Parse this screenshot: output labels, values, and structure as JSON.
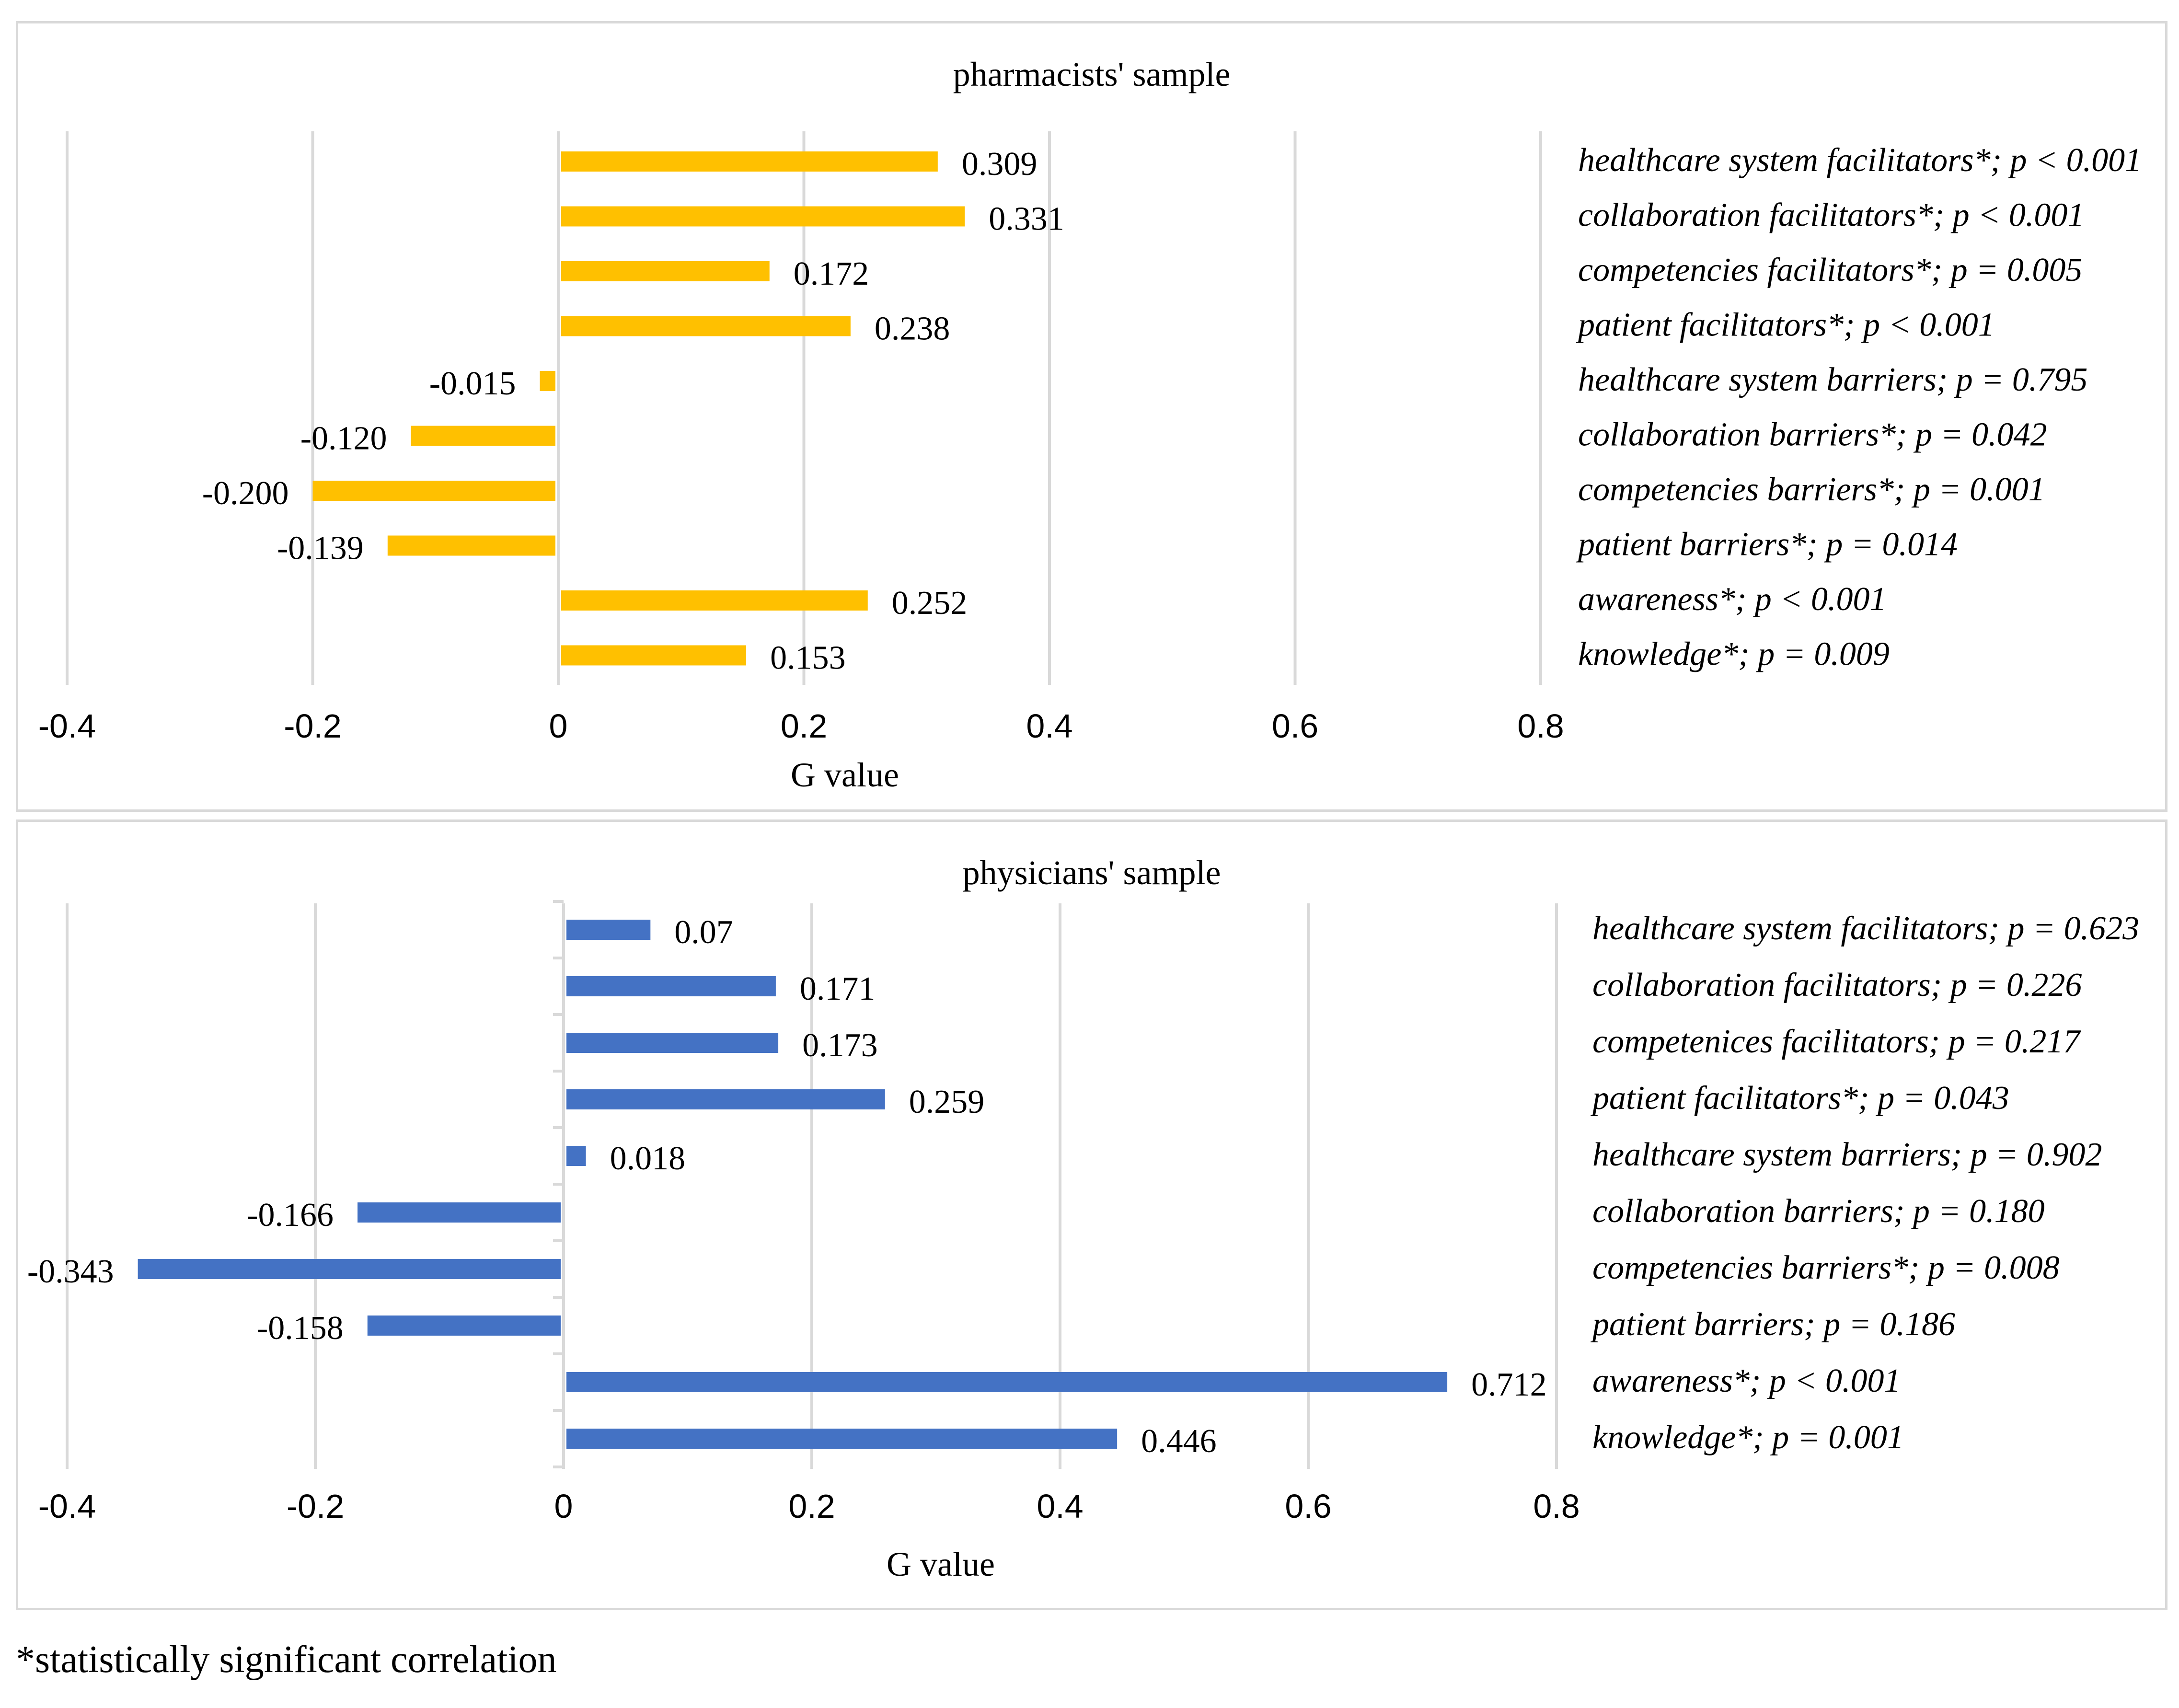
{
  "footnote": "*statistically significant correlation",
  "chart_data": [
    {
      "type": "bar",
      "orientation": "horizontal",
      "title": "pharmacists' sample",
      "xlabel": "G value",
      "ylabel": "",
      "xlim": [
        -0.4,
        0.8
      ],
      "xticks": [
        "-0.4",
        "-0.2",
        "0",
        "0.2",
        "0.4",
        "0.6",
        "0.8"
      ],
      "grid": "vertical",
      "color": "#ffc000",
      "categories": [
        "healthcare system facilitators*; p < 0.001",
        "collaboration facilitators*; p < 0.001",
        "competencies facilitators*; p = 0.005",
        "patient facilitators*; p < 0.001",
        "healthcare system barriers; p = 0.795",
        "collaboration barriers*; p = 0.042",
        "competencies barriers*; p = 0.001",
        "patient barriers*; p = 0.014",
        "awareness*; p < 0.001",
        "knowledge*; p = 0.009"
      ],
      "values": [
        0.309,
        0.331,
        0.172,
        0.238,
        -0.015,
        -0.12,
        -0.2,
        -0.139,
        0.252,
        0.153
      ],
      "labels": [
        "0.309",
        "0.331",
        "0.172",
        "0.238",
        "-0.015",
        "-0.120",
        "-0.200",
        "-0.139",
        "0.252",
        "0.153"
      ]
    },
    {
      "type": "bar",
      "orientation": "horizontal",
      "title": "physicians' sample",
      "xlabel": "G value",
      "ylabel": "",
      "xlim": [
        -0.4,
        0.8
      ],
      "xticks": [
        "-0.4",
        "-0.2",
        "0",
        "0.2",
        "0.4",
        "0.6",
        "0.8"
      ],
      "grid": "vertical",
      "color": "#4472c4",
      "categories": [
        "healthcare system facilitators; p = 0.623",
        "collaboration facilitators; p = 0.226",
        "competenices facilitators; p = 0.217",
        "patient facilitators*; p = 0.043",
        "healthcare system barriers; p = 0.902",
        "collaboration barriers; p = 0.180",
        "competencies barriers*; p = 0.008",
        "patient barriers; p = 0.186",
        "awareness*; p <  0.001",
        "knowledge*; p = 0.001"
      ],
      "values": [
        0.07,
        0.171,
        0.173,
        0.259,
        0.018,
        -0.166,
        -0.343,
        -0.158,
        0.712,
        0.446
      ],
      "labels": [
        "0.07",
        "0.171",
        "0.173",
        "0.259",
        "0.018",
        "-0.166",
        "-0.343",
        "-0.158",
        "0.712",
        "0.446"
      ]
    }
  ]
}
